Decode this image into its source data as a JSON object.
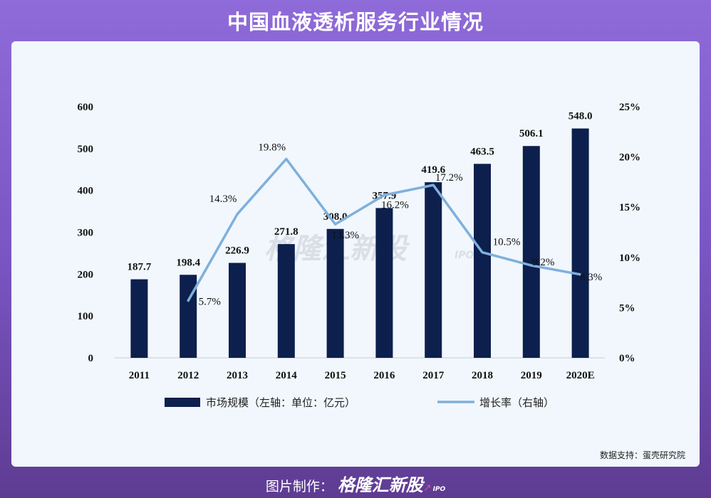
{
  "page": {
    "title": "中国血液透析服务行业情况",
    "footer_prefix": "图片制作：",
    "footer_brand": "格隆汇新股",
    "footer_ipo": "IPO",
    "watermark": "格隆汇新股",
    "watermark_ipo": "IPO",
    "source": "数据支持：蛋壳研究院"
  },
  "colors": {
    "bar": "#0d1f4d",
    "line": "#7fb0dc"
  },
  "chart_data": {
    "type": "bar",
    "categories": [
      "2011",
      "2012",
      "2013",
      "2014",
      "2015",
      "2016",
      "2017",
      "2018",
      "2019",
      "2020E"
    ],
    "series": [
      {
        "name": "市场规模（左轴：单位：亿元）",
        "type": "bar",
        "axis": "left",
        "values": [
          187.7,
          198.4,
          226.9,
          271.8,
          308.0,
          357.9,
          419.6,
          463.5,
          506.1,
          548.0
        ],
        "labels": [
          "187.7",
          "198.4",
          "226.9",
          "271.8",
          "308.0",
          "357.9",
          "419.6",
          "463.5",
          "506.1",
          "548.0"
        ]
      },
      {
        "name": "增长率（右轴）",
        "type": "line",
        "axis": "right",
        "values": [
          null,
          5.7,
          14.3,
          19.8,
          13.3,
          16.2,
          17.2,
          10.5,
          9.2,
          8.3
        ],
        "labels": [
          "",
          "5.7%",
          "14.3%",
          "19.8%",
          "13.3%",
          "16.2%",
          "17.2%",
          "10.5%",
          "9.2%",
          "8.3%"
        ]
      }
    ],
    "y_left": {
      "min": 0,
      "max": 600,
      "ticks": [
        "0",
        "100",
        "200",
        "300",
        "400",
        "500",
        "600"
      ]
    },
    "y_right": {
      "min": 0,
      "max": 25,
      "ticks": [
        "0%",
        "5%",
        "10%",
        "15%",
        "20%",
        "25%"
      ]
    },
    "legend": [
      "市场规模（左轴：单位：亿元）",
      "增长率（右轴）"
    ],
    "legend_position": "bottom"
  }
}
